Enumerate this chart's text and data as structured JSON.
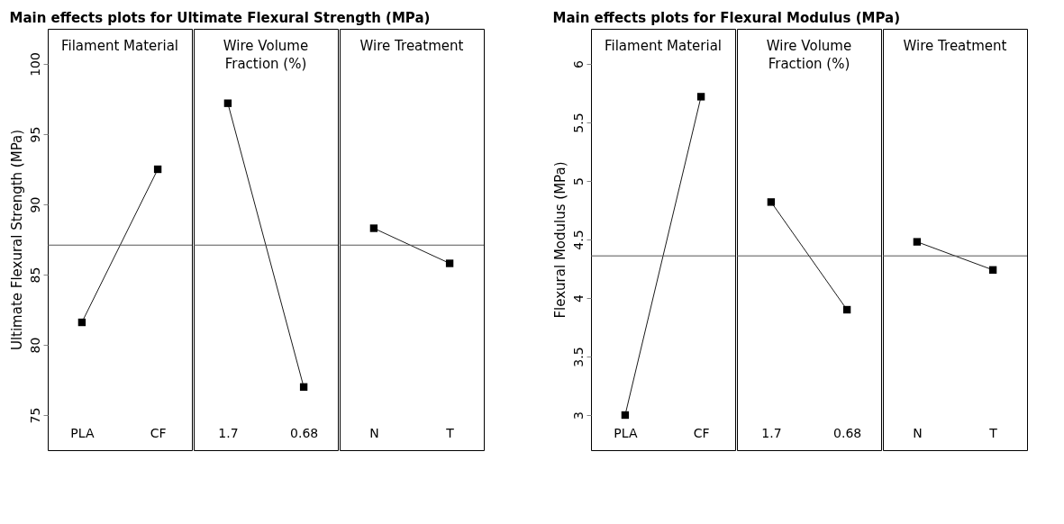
{
  "chart_data": [
    {
      "type": "line",
      "title": "Main effects plots for Ultimate Flexural Strength (MPa)",
      "subtitle": "Filament Material",
      "ylabel": "Ultimate Flexural Strength (MPa)",
      "categories": [
        "PLA",
        "CF"
      ],
      "series": [
        {
          "color": "#000000",
          "values": [
            81.6,
            92.5
          ]
        }
      ],
      "ylim": [
        72.5,
        102.5
      ],
      "yticks": [
        75,
        80,
        85,
        90,
        95,
        100
      ],
      "ref_lines": [
        {
          "axis": "y",
          "value": 87.1,
          "color": "#555555"
        }
      ],
      "marker": "square"
    },
    {
      "type": "line",
      "subtitle": "Wire Volume Fraction (%)",
      "categories": [
        "1.7",
        "0.68"
      ],
      "series": [
        {
          "color": "#000000",
          "values": [
            97.2,
            77.0
          ]
        }
      ],
      "ylim": [
        72.5,
        102.5
      ],
      "yticks": [
        75,
        80,
        85,
        90,
        95,
        100
      ],
      "ref_lines": [
        {
          "axis": "y",
          "value": 87.1,
          "color": "#555555"
        }
      ],
      "marker": "square",
      "tick_labels": "x"
    },
    {
      "type": "line",
      "subtitle": "Wire Treatment",
      "categories": [
        "N",
        "T"
      ],
      "series": [
        {
          "color": "#000000",
          "values": [
            88.3,
            85.8
          ]
        }
      ],
      "ylim": [
        72.5,
        102.5
      ],
      "yticks": [
        75,
        80,
        85,
        90,
        95,
        100
      ],
      "ref_lines": [
        {
          "axis": "y",
          "value": 87.1,
          "color": "#555555"
        }
      ],
      "marker": "square",
      "tick_labels": "x"
    },
    {
      "type": "line",
      "title": "Main effects plots for Flexural Modulus (MPa)",
      "subtitle": "Filament Material",
      "ylabel": "Flexural Modulus (MPa)",
      "categories": [
        "PLA",
        "CF"
      ],
      "series": [
        {
          "color": "#000000",
          "values": [
            3.0,
            5.72
          ]
        }
      ],
      "ylim": [
        2.7,
        6.3
      ],
      "yticks": [
        3,
        3.5,
        4,
        4.5,
        5,
        5.5,
        6
      ],
      "ref_lines": [
        {
          "axis": "y",
          "value": 4.36,
          "color": "#555555"
        }
      ],
      "marker": "square"
    },
    {
      "type": "line",
      "subtitle": "Wire Volume Fraction (%)",
      "categories": [
        "1.7",
        "0.68"
      ],
      "series": [
        {
          "color": "#000000",
          "values": [
            4.82,
            3.9
          ]
        }
      ],
      "ylim": [
        2.7,
        6.3
      ],
      "yticks": [
        3,
        3.5,
        4,
        4.5,
        5,
        5.5,
        6
      ],
      "ref_lines": [
        {
          "axis": "y",
          "value": 4.36,
          "color": "#555555"
        }
      ],
      "marker": "square",
      "tick_labels": "x"
    },
    {
      "type": "line",
      "subtitle": "Wire Treatment",
      "categories": [
        "N",
        "T"
      ],
      "series": [
        {
          "color": "#000000",
          "values": [
            4.48,
            4.24
          ]
        }
      ],
      "ylim": [
        2.7,
        6.3
      ],
      "yticks": [
        3,
        3.5,
        4,
        4.5,
        5,
        5.5,
        6
      ],
      "ref_lines": [
        {
          "axis": "y",
          "value": 4.36,
          "color": "#555555"
        }
      ],
      "marker": "square",
      "tick_labels": "x"
    }
  ]
}
